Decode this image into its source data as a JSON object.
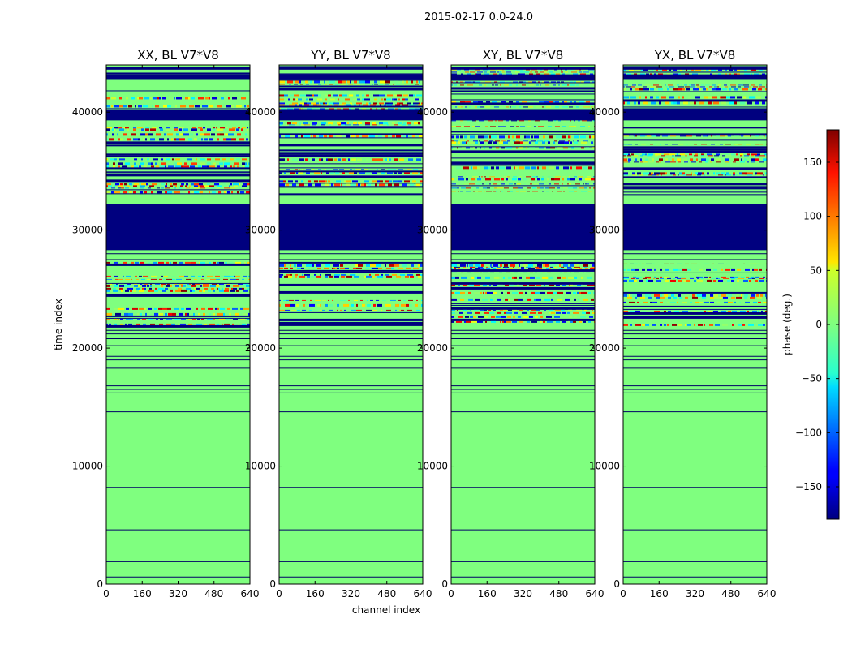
{
  "figure": {
    "title": "2015-02-17 0.0-24.0",
    "x_axis_label": "channel index",
    "y_axis_label": "time index",
    "colorbar_label": "phase (deg.)",
    "colorbar_ticks": [
      "150",
      "100",
      "50",
      "0",
      "−50",
      "−100",
      "−150"
    ]
  },
  "chart_data": {
    "type": "heatmap",
    "panels": [
      {
        "title": "XX, BL V7*V8"
      },
      {
        "title": "YY, BL V7*V8"
      },
      {
        "title": "XY, BL V7*V8"
      },
      {
        "title": "YX, BL V7*V8"
      }
    ],
    "xlim": [
      0,
      640
    ],
    "ylim": [
      0,
      44000
    ],
    "xticks": [
      0,
      160,
      320,
      480,
      640
    ],
    "xtick_labels": [
      "0",
      "160",
      "320",
      "480",
      "640"
    ],
    "yticks": [
      0,
      10000,
      20000,
      30000,
      40000
    ],
    "ytick_labels": [
      "0",
      "10000",
      "20000",
      "30000",
      "40000"
    ],
    "colorbar_range": [
      -180,
      180
    ],
    "colorbar_tick_values": [
      150,
      100,
      50,
      0,
      -50,
      -100,
      -150
    ],
    "colormap": "jet",
    "background_phase": 0,
    "flagged_phase": -180,
    "flagged_time_bands": [
      [
        28300,
        32200
      ],
      [
        39300,
        40200
      ],
      [
        42800,
        43200
      ],
      [
        43600,
        43800
      ]
    ],
    "noisy_time_bands": [
      [
        21800,
        27300
      ],
      [
        33000,
        39300
      ],
      [
        40200,
        43900
      ]
    ],
    "thin_lines_time": [
      600,
      1900,
      4600,
      8200,
      14600,
      16200,
      16500,
      16800,
      18300,
      19000,
      19300,
      20200,
      20800,
      21200,
      21500,
      27500,
      28000
    ]
  },
  "colors": {
    "flagged": "#00007f",
    "background": "#7fff7f"
  }
}
